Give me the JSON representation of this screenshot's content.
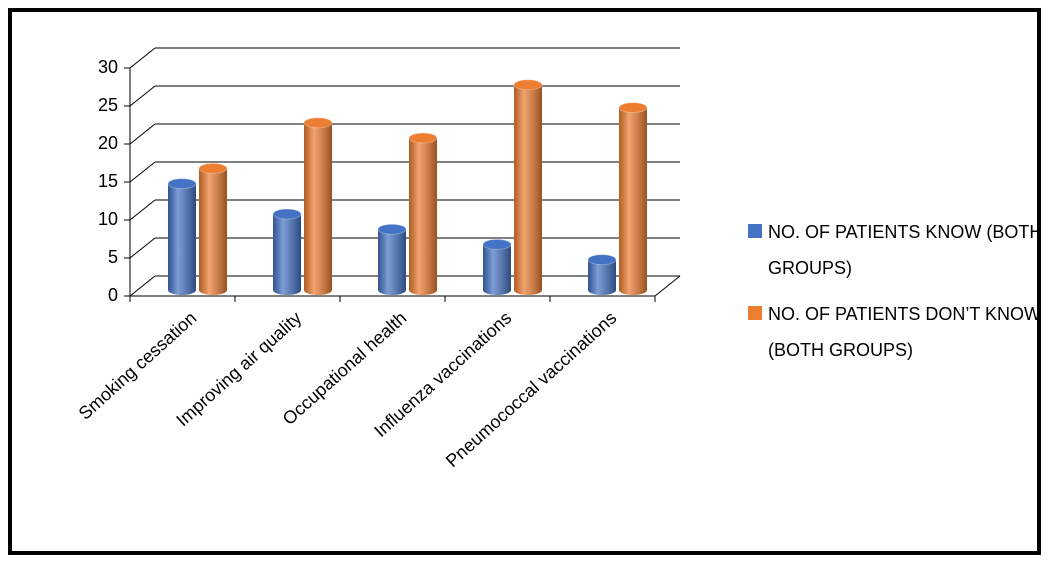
{
  "chart_data": {
    "type": "bar3d",
    "categories": [
      "Smoking cessation",
      "Improving air quality",
      "Occupational health",
      "Influenza vaccinations",
      "Pneumococcal vaccinations"
    ],
    "series": [
      {
        "name": "NO. OF PATIENTS KNOW (BOTH GROUPS)",
        "color": "#4472c4",
        "values": [
          14,
          10,
          8,
          6,
          4
        ]
      },
      {
        "name": "NO. OF PATIENTS DON’T KNOW (BOTH GROUPS)",
        "color": "#ed7d31",
        "values": [
          16,
          22,
          20,
          27,
          24
        ]
      }
    ],
    "ylim": [
      0,
      30
    ],
    "yticks": [
      0,
      5,
      10,
      15,
      20,
      25,
      30
    ],
    "grid": true,
    "legend": "right"
  }
}
